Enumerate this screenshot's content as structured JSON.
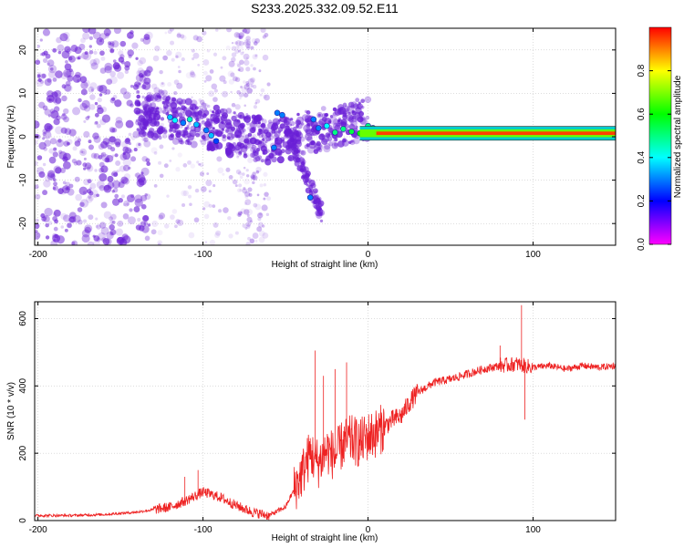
{
  "title": "S233.2025.332.09.52.E11",
  "colors": {
    "snr_line": "#ee2222",
    "spectral_point": "#6a1fd6",
    "axis": "#000000"
  },
  "chart_data": [
    {
      "type": "heatmap",
      "title": "S233.2025.332.09.52.E11",
      "xlabel": "Height of straight line (km)",
      "ylabel": "Frequency (Hz)",
      "xlim": [
        -202,
        150
      ],
      "ylim": [
        -25,
        25
      ],
      "xticks": [
        -200,
        -100,
        0,
        100
      ],
      "xtick_labels": [
        "-200",
        "-100",
        "0",
        "100"
      ],
      "yticks": [
        -20,
        -10,
        0,
        10,
        20
      ],
      "ytick_labels": [
        "-20",
        "-10",
        "0",
        "10",
        "20"
      ],
      "grid": true,
      "colorbar": {
        "label": "Normalized spectral amplitude",
        "range": [
          0,
          1
        ],
        "ticks": [
          0,
          0.2,
          0.4,
          0.6,
          0.8
        ],
        "tick_labels": [
          "0.0",
          "0.2",
          "0.4",
          "0.6",
          "0.8"
        ],
        "colormap": "rainbow (magenta-blue-cyan-green-yellow-red)"
      },
      "carrier_line": {
        "frequency_hz": 0.8,
        "x_start": 5,
        "x_end": 150,
        "amplitude": 0.95
      },
      "points": [
        {
          "x": -120,
          "y": 4.5,
          "v": 0.35
        },
        {
          "x": -117,
          "y": 3.8,
          "v": 0.4
        },
        {
          "x": -112,
          "y": 3.2,
          "v": 0.3
        },
        {
          "x": -108,
          "y": 4.0,
          "v": 0.45
        },
        {
          "x": -104,
          "y": 2.8,
          "v": 0.35
        },
        {
          "x": -98,
          "y": 1.5,
          "v": 0.3
        },
        {
          "x": -95,
          "y": 0.3,
          "v": 0.35
        },
        {
          "x": -92,
          "y": -1.0,
          "v": 0.25
        },
        {
          "x": -55,
          "y": 5.5,
          "v": 0.3
        },
        {
          "x": -52,
          "y": 5.0,
          "v": 0.3
        },
        {
          "x": -57,
          "y": -2.5,
          "v": 0.3
        },
        {
          "x": -33,
          "y": 4.0,
          "v": 0.3
        },
        {
          "x": -30,
          "y": 2.0,
          "v": 0.3
        },
        {
          "x": -25,
          "y": 2.5,
          "v": 0.4
        },
        {
          "x": -20,
          "y": 1.0,
          "v": 0.5
        },
        {
          "x": -15,
          "y": 1.8,
          "v": 0.5
        },
        {
          "x": -10,
          "y": 1.2,
          "v": 0.55
        },
        {
          "x": -5,
          "y": 0.8,
          "v": 0.6
        },
        {
          "x": 0,
          "y": 2.5,
          "v": 0.5
        },
        {
          "x": 3,
          "y": 2.0,
          "v": 0.55
        },
        {
          "x": -35,
          "y": -14,
          "v": 0.3
        }
      ]
    },
    {
      "type": "line",
      "xlabel": "Height of straight line (km)",
      "ylabel": "SNR (10 * v/v)",
      "xlim": [
        -202,
        150
      ],
      "ylim": [
        0,
        650
      ],
      "xticks": [
        -200,
        -100,
        0,
        100
      ],
      "xtick_labels": [
        "-200",
        "-100",
        "0",
        "100"
      ],
      "yticks": [
        0,
        200,
        400,
        600
      ],
      "ytick_labels": [
        "0",
        "200",
        "400",
        "600"
      ],
      "grid": true,
      "series": [
        {
          "name": "SNR",
          "x": [
            -202,
            -180,
            -160,
            -140,
            -120,
            -110,
            -100,
            -90,
            -80,
            -70,
            -60,
            -50,
            -45,
            -40,
            -35,
            -30,
            -25,
            -20,
            -15,
            -10,
            -5,
            0,
            5,
            10,
            15,
            20,
            25,
            30,
            40,
            50,
            60,
            70,
            80,
            90,
            100,
            110,
            120,
            130,
            140,
            150
          ],
          "y": [
            15,
            15,
            18,
            25,
            40,
            60,
            85,
            70,
            45,
            25,
            15,
            40,
            90,
            140,
            200,
            170,
            210,
            190,
            230,
            240,
            230,
            250,
            260,
            280,
            300,
            310,
            350,
            380,
            410,
            420,
            435,
            450,
            460,
            465,
            455,
            460,
            450,
            460,
            455,
            460
          ],
          "spikes": [
            {
              "x": -111,
              "y": 130
            },
            {
              "x": -103,
              "y": 150
            },
            {
              "x": -32,
              "y": 505
            },
            {
              "x": -27,
              "y": 430
            },
            {
              "x": -20,
              "y": 450
            },
            {
              "x": -13,
              "y": 470
            },
            {
              "x": 80,
              "y": 520
            },
            {
              "x": 93,
              "y": 640
            },
            {
              "x": 95,
              "y": 300
            }
          ]
        }
      ]
    }
  ]
}
